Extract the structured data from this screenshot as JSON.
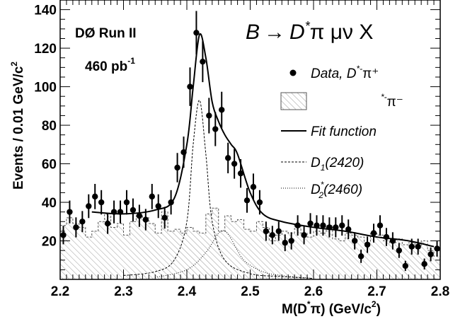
{
  "chart_data": {
    "type": "scatter",
    "title": "",
    "experiment": "DØ Run II",
    "luminosity": "460 pb",
    "luminosity_sup": "-1",
    "process": {
      "lhs": "B",
      "arrow": "→",
      "rhs": "D",
      "rhs_sup": "*",
      "rest": "π μν X"
    },
    "xlabel": {
      "base": "M(D",
      "sup": "*",
      "mid": "π) (GeV/c",
      "sup2": "2",
      "end": ")"
    },
    "ylabel": {
      "base": "Events / 0.01  GeV/c",
      "sup": "2"
    },
    "xlim": [
      2.2,
      2.8
    ],
    "ylim": [
      0,
      145
    ],
    "x_ticks": [
      "2.2",
      "2.3",
      "2.4",
      "2.5",
      "2.6",
      "2.7",
      "2.8"
    ],
    "y_ticks": [
      "20",
      "40",
      "60",
      "80",
      "100",
      "120",
      "140"
    ],
    "legend": {
      "placement": "right",
      "data": {
        "prefix": "Data,  D",
        "sup": "*-",
        "suffix": "π⁺"
      },
      "hist": {
        "sup": "*-",
        "suffix": "π⁻"
      },
      "fit": "Fit function",
      "d1": {
        "base": "D",
        "sub": "1",
        "rest": "(2420)"
      },
      "d2": {
        "base": "D",
        "sub": "2",
        "sup": "*",
        "rest": "(2460)"
      }
    },
    "series": [
      {
        "name": "Data",
        "x": [
          2.205,
          2.215,
          2.225,
          2.235,
          2.245,
          2.255,
          2.265,
          2.275,
          2.285,
          2.295,
          2.305,
          2.315,
          2.325,
          2.335,
          2.345,
          2.355,
          2.365,
          2.375,
          2.385,
          2.395,
          2.405,
          2.415,
          2.425,
          2.435,
          2.445,
          2.455,
          2.465,
          2.475,
          2.485,
          2.495,
          2.505,
          2.515,
          2.525,
          2.535,
          2.545,
          2.555,
          2.565,
          2.575,
          2.585,
          2.595,
          2.605,
          2.615,
          2.625,
          2.635,
          2.645,
          2.655,
          2.665,
          2.675,
          2.685,
          2.695,
          2.705,
          2.715,
          2.725,
          2.735,
          2.745,
          2.755,
          2.765,
          2.775,
          2.785,
          2.795
        ],
        "y": [
          23,
          35,
          27,
          30,
          38,
          43,
          40,
          29,
          35,
          35,
          40,
          36,
          33,
          31,
          43,
          38,
          32,
          40,
          58,
          66,
          100,
          128,
          113,
          85,
          78,
          88,
          63,
          60,
          55,
          41,
          48,
          40,
          25,
          23,
          25,
          19,
          20,
          28,
          23,
          29,
          28,
          28,
          27,
          27,
          28,
          26,
          20,
          12,
          18,
          24,
          28,
          22,
          20,
          15,
          7,
          17,
          17,
          8,
          13,
          16
        ]
      },
      {
        "name": "D*-π- histogram",
        "x": [
          2.205,
          2.215,
          2.225,
          2.235,
          2.245,
          2.255,
          2.265,
          2.275,
          2.285,
          2.295,
          2.305,
          2.315,
          2.325,
          2.335,
          2.345,
          2.355,
          2.365,
          2.375,
          2.385,
          2.395,
          2.405,
          2.415,
          2.425,
          2.435,
          2.445,
          2.455,
          2.465,
          2.475,
          2.485,
          2.495,
          2.505,
          2.515,
          2.525,
          2.535,
          2.545,
          2.555,
          2.565,
          2.575,
          2.585,
          2.595,
          2.605,
          2.615,
          2.625,
          2.635,
          2.645,
          2.655,
          2.665,
          2.675,
          2.685,
          2.695,
          2.705,
          2.715,
          2.725,
          2.735,
          2.745,
          2.755,
          2.765,
          2.775,
          2.785,
          2.795
        ],
        "y": [
          28,
          32,
          29,
          27,
          22,
          25,
          30,
          34,
          27,
          29,
          23,
          30,
          33,
          32,
          29,
          24,
          35,
          25,
          26,
          24,
          27,
          25,
          24,
          34,
          37,
          25,
          33,
          30,
          31,
          26,
          25,
          30,
          27,
          20,
          23,
          25,
          24,
          28,
          24,
          22,
          25,
          24,
          28,
          21,
          20,
          24,
          23,
          22,
          19,
          24,
          23,
          20,
          19,
          21,
          18,
          19,
          17,
          20,
          15,
          12
        ]
      },
      {
        "name": "Fit function",
        "x": [
          2.25,
          2.3,
          2.35,
          2.38,
          2.4,
          2.41,
          2.42,
          2.43,
          2.44,
          2.45,
          2.46,
          2.47,
          2.48,
          2.5,
          2.52,
          2.55,
          2.6,
          2.65,
          2.7,
          2.75,
          2.79
        ],
        "y": [
          35,
          34,
          36,
          42,
          70,
          100,
          127,
          115,
          92,
          82,
          75,
          70,
          65,
          45,
          34,
          30,
          27,
          25,
          22,
          20,
          17
        ]
      },
      {
        "name": "D1(2420)",
        "x": [
          2.3,
          2.35,
          2.38,
          2.4,
          2.41,
          2.42,
          2.43,
          2.44,
          2.46,
          2.5,
          2.55,
          2.6
        ],
        "y": [
          2,
          4,
          10,
          30,
          70,
          93,
          65,
          30,
          10,
          3,
          1.5,
          0.5
        ]
      },
      {
        "name": "D2*(2460)",
        "x": [
          2.35,
          2.4,
          2.43,
          2.45,
          2.46,
          2.47,
          2.49,
          2.52,
          2.55,
          2.6
        ],
        "y": [
          1,
          5,
          14,
          24,
          25,
          21,
          10,
          4,
          2,
          0.5
        ]
      }
    ]
  }
}
